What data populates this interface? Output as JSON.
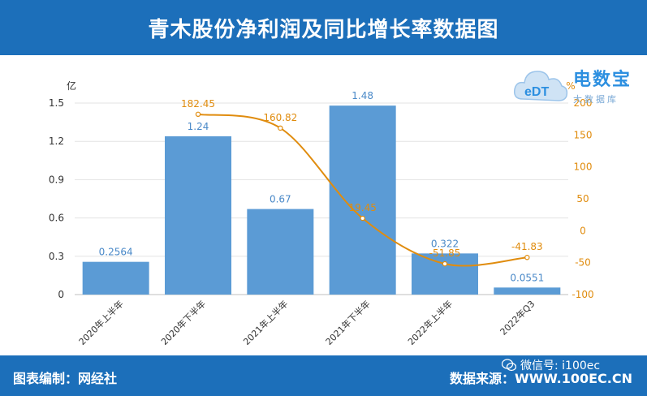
{
  "header": {
    "title": "青木股份净利润及同比增长率数据图"
  },
  "footer": {
    "left": "图表编制：网经社",
    "right": "数据来源：WWW.100EC.CN"
  },
  "watermark": {
    "wechat": "微信号: i100ec"
  },
  "brand": {
    "name": "电数宝",
    "sub": "大数据库",
    "mark": "eDT"
  },
  "colors": {
    "bar": "#5b9bd5",
    "line": "#e08c0e",
    "header": "#1c6fba"
  },
  "chart_data": {
    "type": "bar",
    "categories": [
      "2020年上半年",
      "2020年下半年",
      "2021年上半年",
      "2021年下半年",
      "2022年上半年",
      "2022年Q3"
    ],
    "series": [
      {
        "values": [
          0.2564,
          1.24,
          0.67,
          1.48,
          0.322,
          0.0551
        ],
        "axis": "left",
        "type": "bar"
      },
      {
        "values": [
          null,
          182.45,
          160.82,
          19.45,
          -51.85,
          -41.83
        ],
        "axis": "right",
        "type": "line"
      }
    ],
    "bar_labels": [
      "0.2564",
      "1.24",
      "0.67",
      "1.48",
      "0.322",
      "0.0551"
    ],
    "line_labels": [
      "",
      "182.45",
      "160.82",
      "19.45",
      "-51.85",
      "-41.83"
    ],
    "ylabel": "亿",
    "ylim": [
      0,
      1.5
    ],
    "yticks": [
      "0",
      "0.3",
      "0.6",
      "0.9",
      "1.2",
      "1.5"
    ],
    "y2label": "%",
    "y2lim": [
      -100,
      200
    ],
    "y2ticks": [
      "-100",
      "-50",
      "0",
      "50",
      "100",
      "150",
      "200"
    ],
    "grid": true
  }
}
